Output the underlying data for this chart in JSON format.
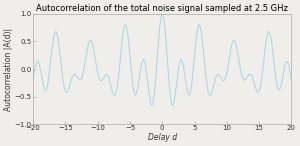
{
  "title": "Autocorrelation of the total noise signal sampled at 2.5 GHz",
  "xlabel": "Delay d",
  "ylabel": "Autocorrelation |A(d)|",
  "xlim": [
    -20,
    20
  ],
  "ylim": [
    -1,
    1
  ],
  "xticks": [
    -20,
    -15,
    -10,
    -5,
    0,
    5,
    10,
    15,
    20
  ],
  "yticks": [
    -1,
    -0.5,
    0,
    0.5,
    1
  ],
  "line_color": "#a8d4e6",
  "bg_color": "#f0eeea",
  "title_fontsize": 6.0,
  "label_fontsize": 5.5,
  "tick_fontsize": 5.0,
  "num_points": 800,
  "carrier_freq": 0.27,
  "mod_freq1": 0.09,
  "mod_freq2": 0.045
}
